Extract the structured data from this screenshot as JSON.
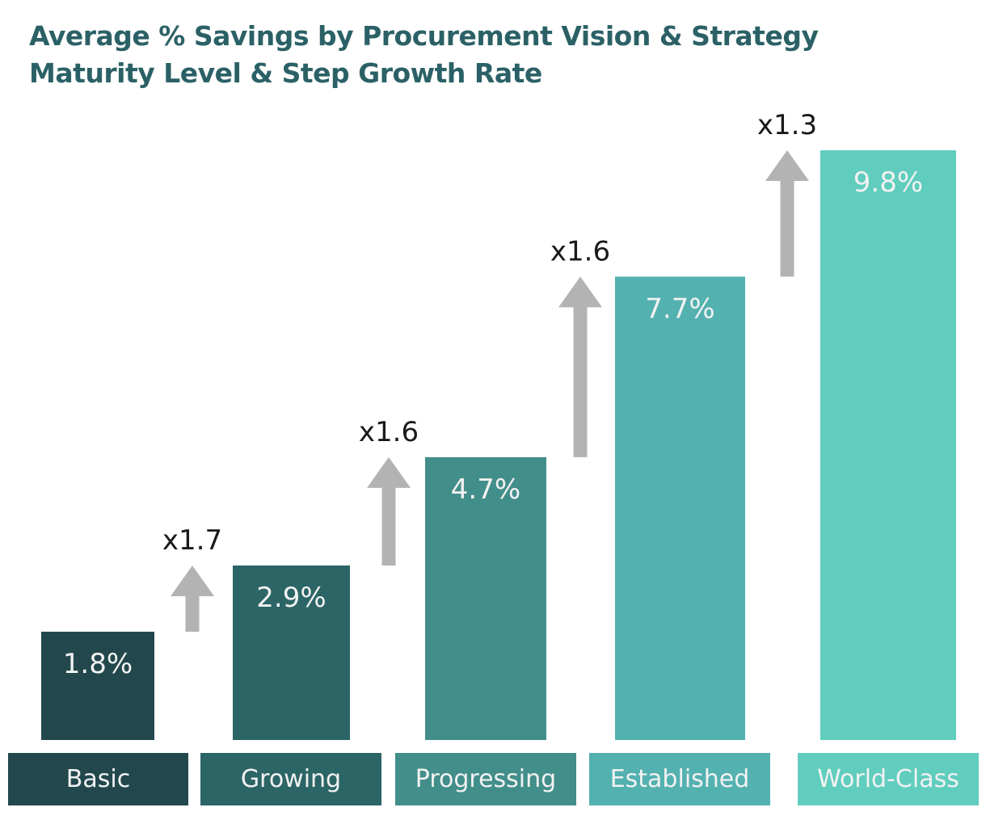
{
  "chart_data": {
    "type": "bar",
    "title": "Average % Savings by Procurement Vision & Strategy Maturity Level & Step Growth Rate",
    "title_lines": [
      "Average % Savings by Procurement Vision & Strategy",
      "Maturity Level & Step Growth Rate"
    ],
    "xlabel": "",
    "ylabel": "",
    "ylim": [
      0,
      9.8
    ],
    "grid": false,
    "legend": "none",
    "categories": [
      "Basic",
      "Growing",
      "Progressing",
      "Established",
      "World-Class"
    ],
    "values": [
      1.8,
      2.9,
      4.7,
      7.7,
      9.8
    ],
    "value_labels": [
      "1.8%",
      "2.9%",
      "4.7%",
      "7.7%",
      "9.8%"
    ],
    "colors": [
      "#22484d",
      "#2c6566",
      "#428e8a",
      "#53b1b0",
      "#60cdbe"
    ],
    "step_growth": [
      {
        "from": "Basic",
        "to": "Growing",
        "label": "x1.7"
      },
      {
        "from": "Growing",
        "to": "Progressing",
        "label": "x1.6"
      },
      {
        "from": "Progressing",
        "to": "Established",
        "label": "x1.6"
      },
      {
        "from": "Established",
        "to": "World-Class",
        "label": "x1.3"
      }
    ],
    "arrow_color": "#b3b3b3",
    "title_color": "#2b6166",
    "label_text_color": "#f2f2f2",
    "growth_text_color": "#1a1a1a"
  }
}
